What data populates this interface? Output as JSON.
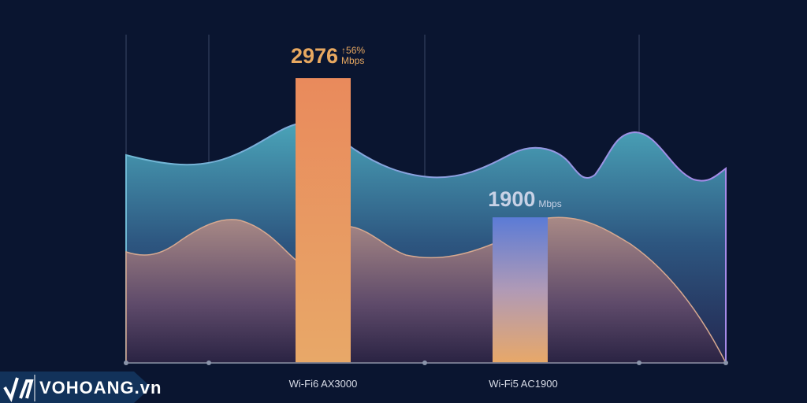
{
  "chart_data": {
    "type": "bar",
    "categories": [
      "Wi-Fi6 AX3000",
      "Wi-Fi5 AC1900"
    ],
    "values": [
      2976,
      1900
    ],
    "unit": "Mbps",
    "annotations": [
      {
        "category": "Wi-Fi6 AX3000",
        "text": "56%",
        "icon": "arrow-up-icon"
      }
    ],
    "grid": "vertical",
    "colors": {
      "bar1": "#e8965a",
      "bar2_top": "#5b7bd6",
      "bar2_bottom": "#e8a868",
      "label1": "#e8a860",
      "label2": "#c8d2e6"
    }
  },
  "labels": {
    "bar1_value": "2976",
    "bar1_increase": "56%",
    "bar1_unit": "Mbps",
    "bar2_value": "1900",
    "bar2_unit": "Mbps",
    "cat1": "Wi-Fi6 AX3000",
    "cat2": "Wi-Fi5 AC1900"
  },
  "logo": {
    "text": "VOHOANG.vn"
  }
}
